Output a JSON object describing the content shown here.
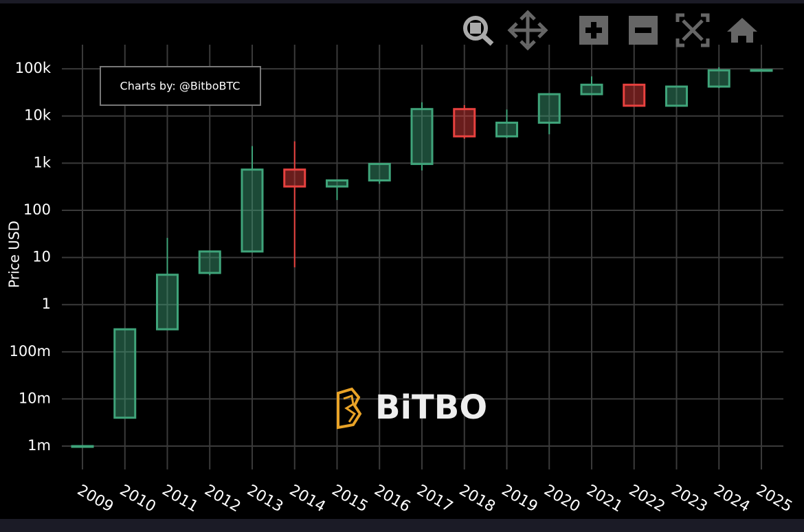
{
  "chart_data": {
    "type": "candlestick",
    "y_label": "Price USD",
    "annotation": "Charts by: @BitboBTC",
    "watermark": "BiTBO",
    "log_scale": true,
    "grid": true,
    "up_color": "#3fa47a",
    "down_color": "#e8413f",
    "categories": [
      "2009",
      "2010",
      "2011",
      "2012",
      "2013",
      "2014",
      "2015",
      "2016",
      "2017",
      "2018",
      "2019",
      "2020",
      "2021",
      "2022",
      "2023",
      "2024",
      "2025"
    ],
    "open": [
      0.001,
      0.004,
      0.3,
      4.7,
      13.4,
      730,
      320,
      430,
      960,
      14000,
      3700,
      7200,
      29000,
      46000,
      16500,
      42000,
      93000
    ],
    "high": [
      0.001,
      0.3,
      26,
      13.5,
      2300,
      2900,
      450,
      980,
      19500,
      17000,
      13700,
      29000,
      69000,
      48000,
      44000,
      108000,
      100000
    ],
    "low": [
      0.001,
      0.004,
      0.3,
      4.2,
      13,
      6.2,
      165,
      365,
      700,
      3300,
      3400,
      4100,
      28000,
      15800,
      16500,
      39000,
      93000
    ],
    "close": [
      0.001,
      0.3,
      4.3,
      13.4,
      730,
      320,
      430,
      960,
      14000,
      3700,
      7200,
      29000,
      46000,
      16500,
      42000,
      93000,
      94000
    ],
    "ylim": [
      0.00032,
      325000
    ],
    "yticks": [
      {
        "value": 0.001,
        "label": "1m"
      },
      {
        "value": 0.01,
        "label": "10m"
      },
      {
        "value": 0.1,
        "label": "100m"
      },
      1,
      10,
      100,
      {
        "value": 1000,
        "label": "1k"
      },
      {
        "value": 10000,
        "label": "10k"
      },
      {
        "value": 100000,
        "label": "100k"
      }
    ]
  }
}
